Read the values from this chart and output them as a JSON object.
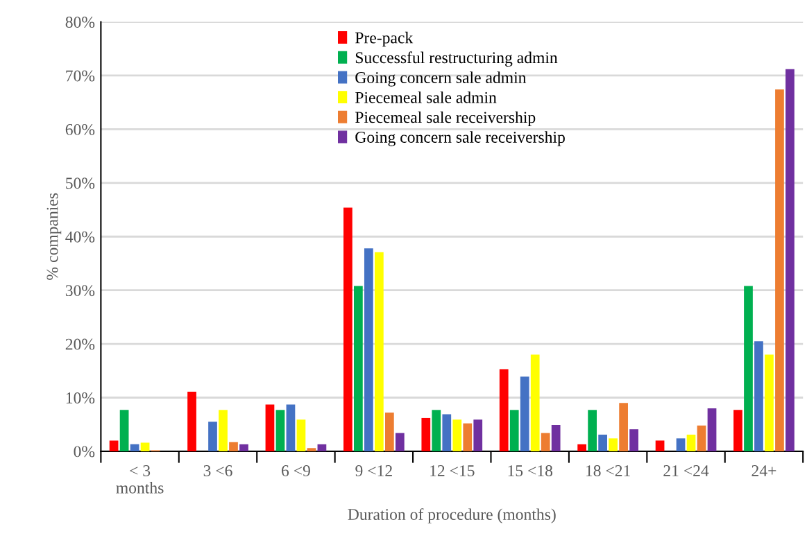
{
  "chart_data": {
    "type": "bar",
    "xlabel": "Duration of procedure (months)",
    "ylabel": "% companies",
    "categories": [
      "< 3\nmonths",
      "3 <6",
      "6 <9",
      "9 <12",
      "12 <15",
      "15 <18",
      "18 <21",
      "21 <24",
      "24+"
    ],
    "series": [
      {
        "name": "Pre-pack",
        "color": "#ff0000",
        "values": [
          2.0,
          11.1,
          8.7,
          45.4,
          6.2,
          15.3,
          1.3,
          2.0,
          7.7
        ]
      },
      {
        "name": "Successful restructuring admin",
        "color": "#00b050",
        "values": [
          7.7,
          0,
          7.7,
          30.8,
          7.7,
          7.7,
          7.7,
          0,
          30.8
        ]
      },
      {
        "name": "Going concern sale admin",
        "color": "#4472c4",
        "values": [
          1.3,
          5.5,
          8.7,
          37.8,
          6.9,
          13.9,
          3.1,
          2.4,
          20.5
        ]
      },
      {
        "name": "Piecemeal sale admin",
        "color": "#ffff00",
        "values": [
          1.6,
          7.7,
          5.9,
          37.1,
          5.9,
          18.0,
          2.4,
          3.1,
          18.0
        ]
      },
      {
        "name": "Piecemeal sale receivership",
        "color": "#ed7d31",
        "values": [
          0.2,
          1.7,
          0.6,
          7.2,
          5.2,
          3.4,
          9.0,
          4.8,
          67.4
        ]
      },
      {
        "name": "Going concern sale receivership",
        "color": "#7030a0",
        "values": [
          0,
          1.3,
          1.3,
          3.4,
          5.9,
          4.9,
          4.1,
          8.0,
          71.2
        ]
      }
    ],
    "ylim": [
      0,
      80
    ],
    "yticks": [
      {
        "value": 0,
        "label": "0%"
      },
      {
        "value": 10,
        "label": "10%"
      },
      {
        "value": 20,
        "label": "20%"
      },
      {
        "value": 30,
        "label": "30%"
      },
      {
        "value": 40,
        "label": "40%"
      },
      {
        "value": 50,
        "label": "50%"
      },
      {
        "value": 60,
        "label": "60%"
      },
      {
        "value": 70,
        "label": "70%"
      },
      {
        "value": 80,
        "label": "80%"
      }
    ],
    "grid": "y",
    "legend": "top"
  }
}
